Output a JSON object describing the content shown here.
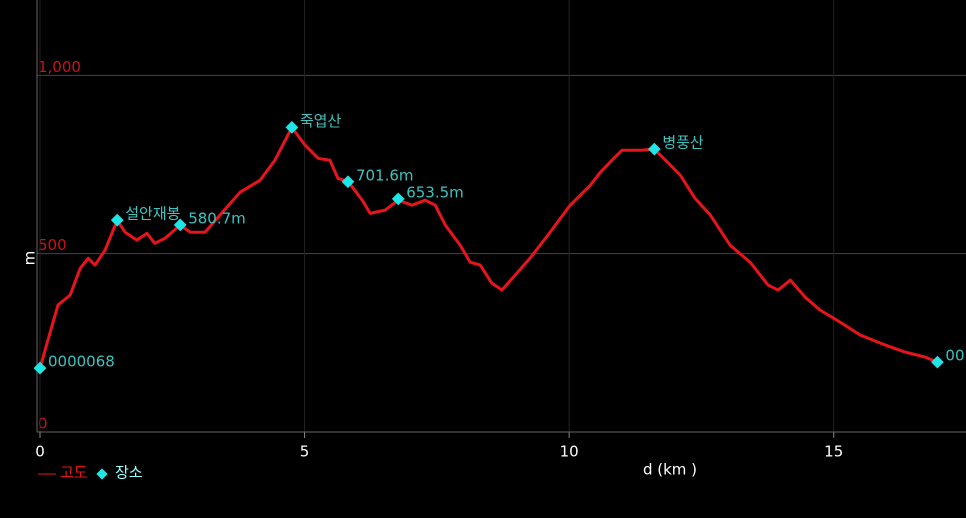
{
  "chart_data": {
    "type": "line",
    "xlabel": "d (km )",
    "ylabel": "m",
    "xlim": [
      0,
      17.5
    ],
    "ylim": [
      0,
      1200
    ],
    "xticks": [
      0,
      5,
      10,
      15
    ],
    "yticks": [
      0,
      500,
      {
        "value": 1000,
        "label": "1,000"
      }
    ],
    "grid": true,
    "series": [
      {
        "name": "고도",
        "color": "#e8141b",
        "x": [
          0,
          0.15,
          0.34,
          0.57,
          0.76,
          0.91,
          1.04,
          1.23,
          1.46,
          1.61,
          1.83,
          2.02,
          2.17,
          2.36,
          2.65,
          2.84,
          3.12,
          3.4,
          3.78,
          4.16,
          4.44,
          4.76,
          5.01,
          5.26,
          5.48,
          5.63,
          5.82,
          6.09,
          6.24,
          6.52,
          6.77,
          7.03,
          7.28,
          7.47,
          7.66,
          7.94,
          8.13,
          8.32,
          8.54,
          8.73,
          8.98,
          9.26,
          9.64,
          10.02,
          10.4,
          10.59,
          10.81,
          11.0,
          11.34,
          11.61,
          11.82,
          12.1,
          12.38,
          12.67,
          13.04,
          13.42,
          13.76,
          13.95,
          14.18,
          14.46,
          14.74,
          15.12,
          15.5,
          15.97,
          16.35,
          16.73,
          16.96
        ],
        "values": [
          179,
          258,
          356,
          384,
          459,
          487,
          468,
          510,
          594,
          560,
          538,
          557,
          529,
          543,
          580,
          560,
          560,
          608,
          672,
          706,
          762,
          854,
          804,
          767,
          762,
          711,
          703,
          650,
          613,
          622,
          650,
          636,
          650,
          636,
          580,
          524,
          476,
          468,
          417,
          398,
          440,
          487,
          560,
          636,
          692,
          728,
          762,
          790,
          790,
          793,
          762,
          720,
          655,
          608,
          524,
          476,
          412,
          398,
          426,
          378,
          342,
          308,
          272,
          244,
          224,
          210,
          196
        ]
      },
      {
        "name": "장소",
        "color": "#1ee6e6",
        "type": "scatter",
        "x": [
          0,
          1.46,
          2.65,
          4.76,
          5.82,
          6.77,
          11.61,
          16.96
        ],
        "values": [
          179,
          594,
          580.7,
          854,
          701.6,
          653.5,
          793,
          196
        ],
        "labels": [
          "0000068",
          "설안재봉",
          "580.7m",
          "죽엽산",
          "701.6m",
          "653.5m",
          "병풍산",
          "00"
        ]
      }
    ]
  }
}
